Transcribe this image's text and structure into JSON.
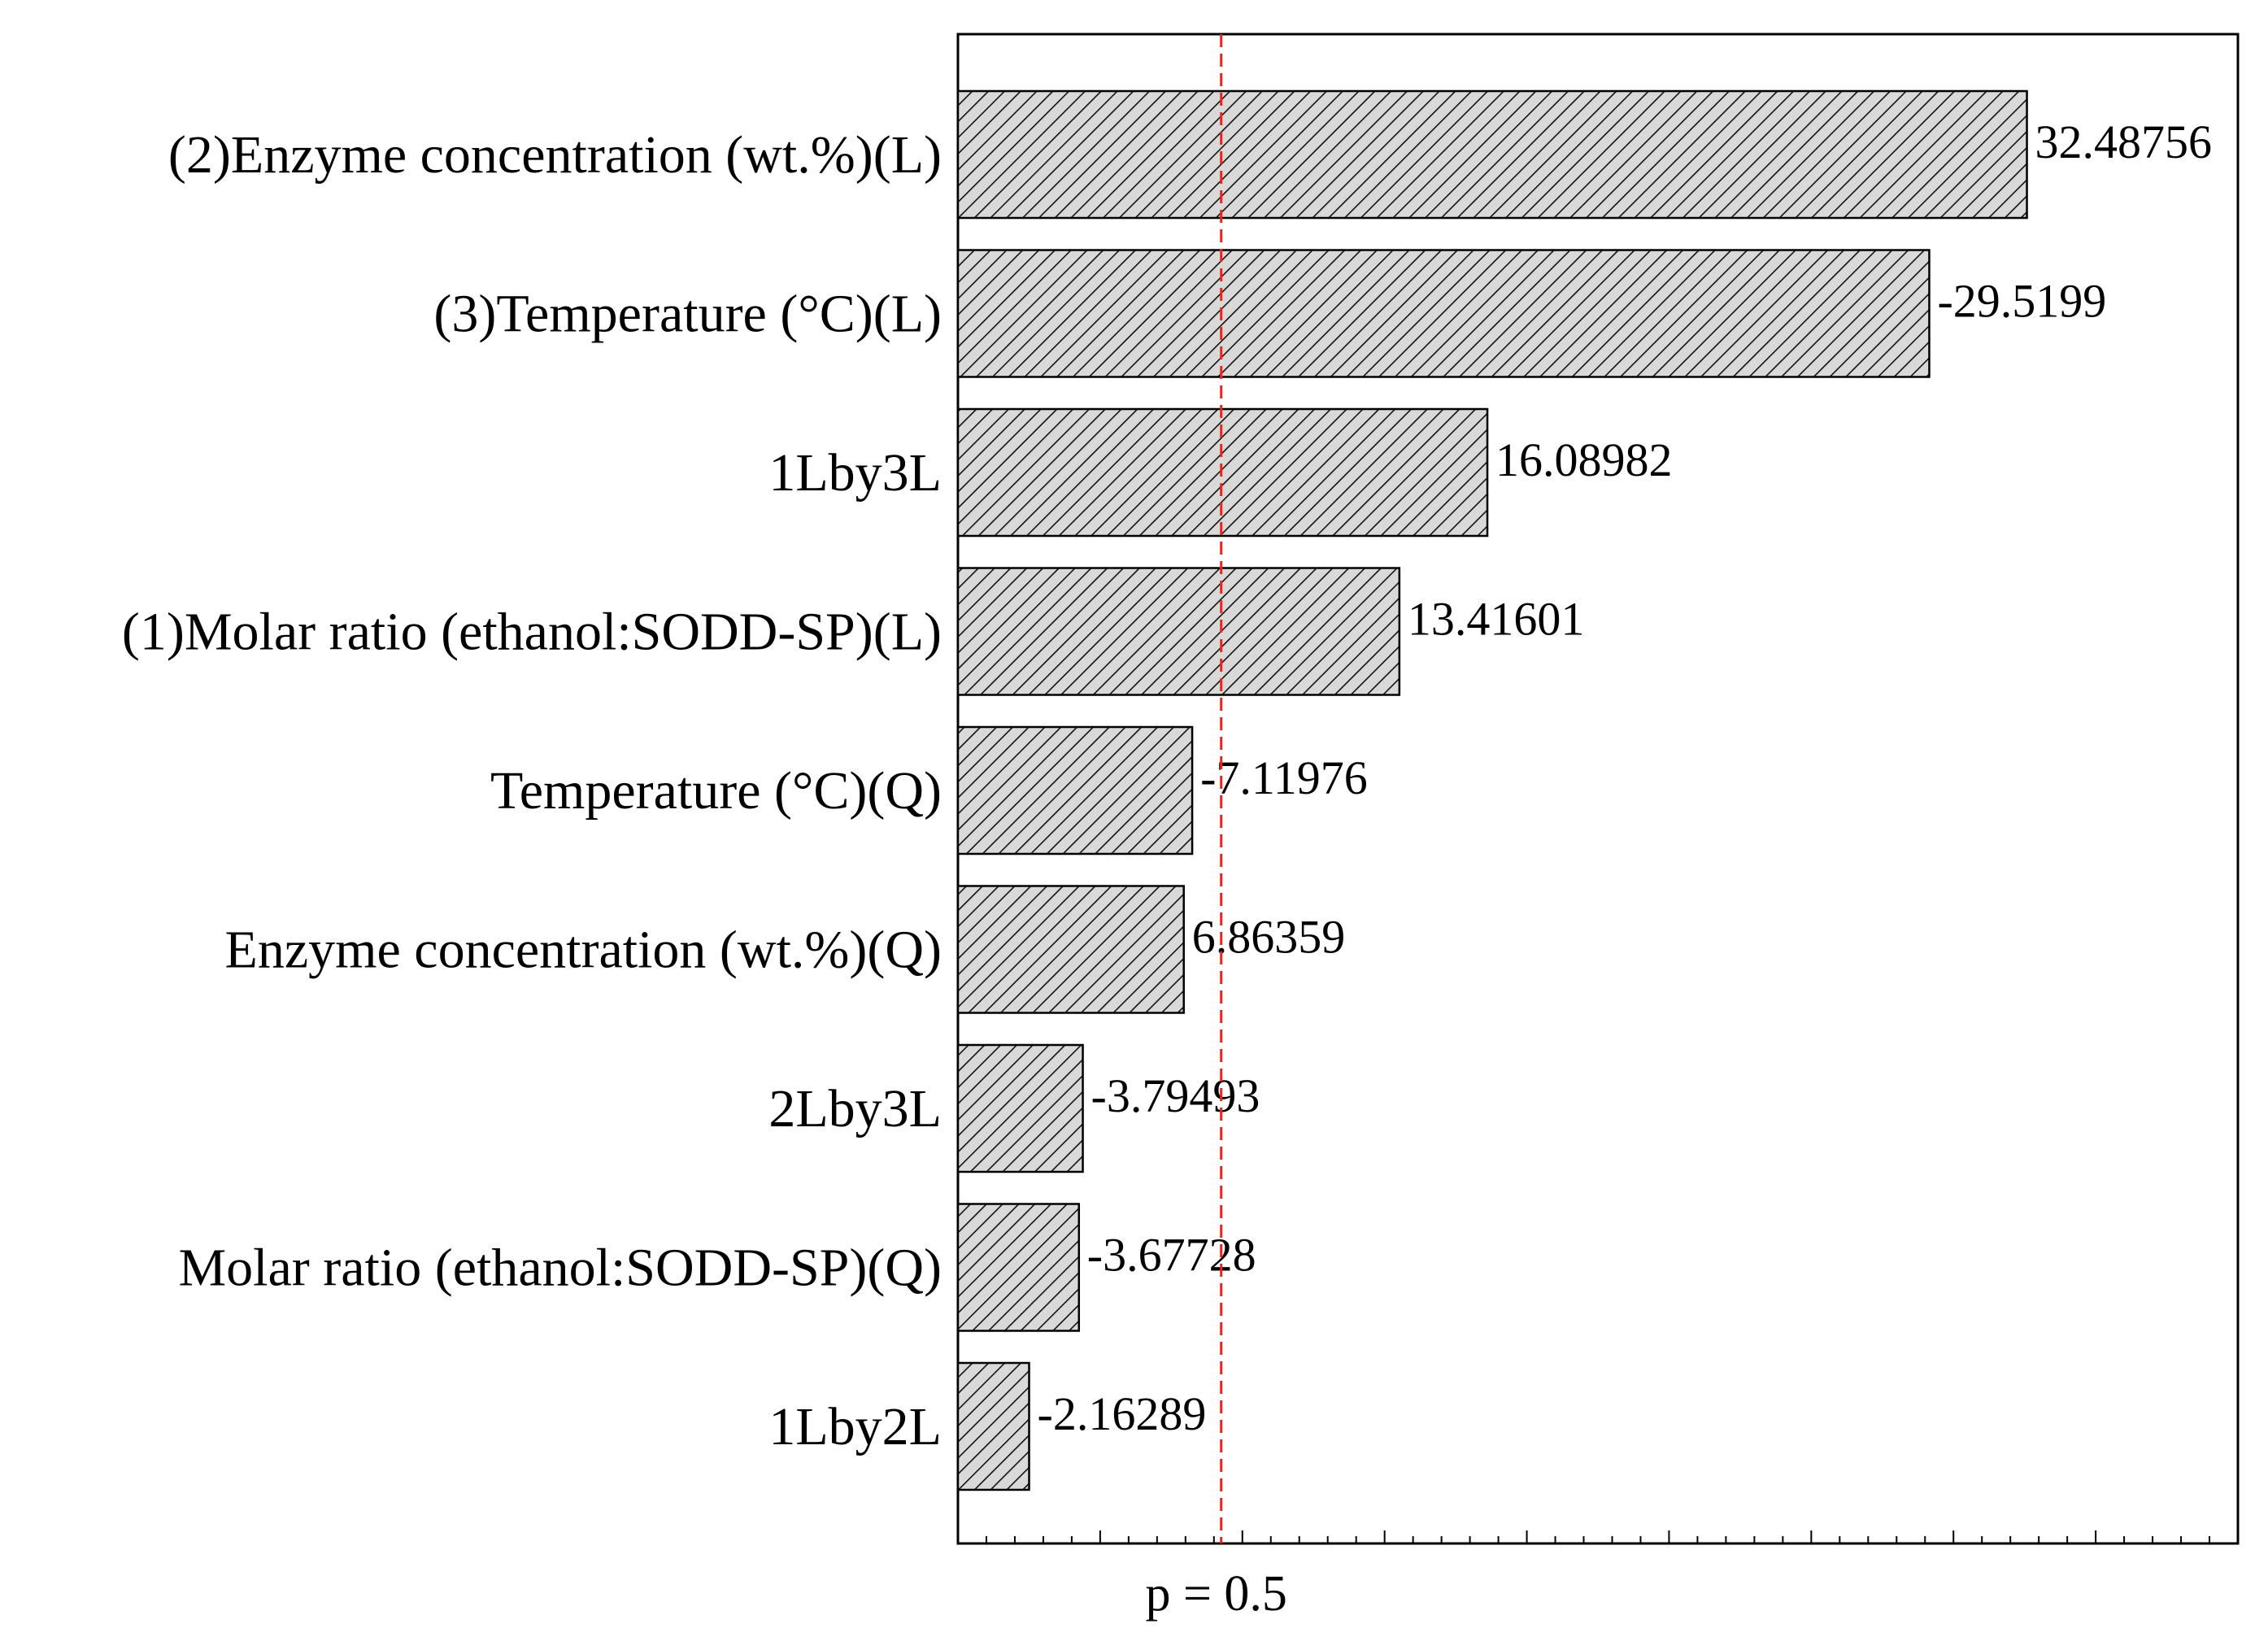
{
  "chart_data": {
    "type": "bar",
    "orientation": "horizontal",
    "title": "",
    "xlabel": "",
    "ylabel": "",
    "categories": [
      "(2)Enzyme concentration (wt.%)(L)",
      "(3)Temperature (°C)(L)",
      "1Lby3L",
      "(1)Molar ratio (ethanol:SODD-SP)(L)",
      "Temperature (°C)(Q)",
      "Enzyme concentration (wt.%)(Q)",
      "2Lby3L",
      "Molar ratio (ethanol:SODD-SP)(Q)",
      "1Lby2L"
    ],
    "values": [
      32.48756,
      -29.5199,
      16.08982,
      13.41601,
      -7.11976,
      6.86359,
      -3.79493,
      -3.67728,
      -2.16289
    ],
    "value_labels": [
      "32.48756",
      "-29.5199",
      "16.08982",
      "13.41601",
      "-7.11976",
      "6.86359",
      "-3.79493",
      "-3.67728",
      "-2.16289"
    ],
    "bar_length": "absolute value",
    "xlim": [
      0,
      38.9
    ],
    "reference_line": {
      "value": 8.0,
      "label": "p = 0.5",
      "color": "#e8251f",
      "style": "dashed"
    },
    "bar_fill": "diagonal hatch",
    "bar_color": "#d9d9d9",
    "grid": false,
    "legend": "none"
  }
}
